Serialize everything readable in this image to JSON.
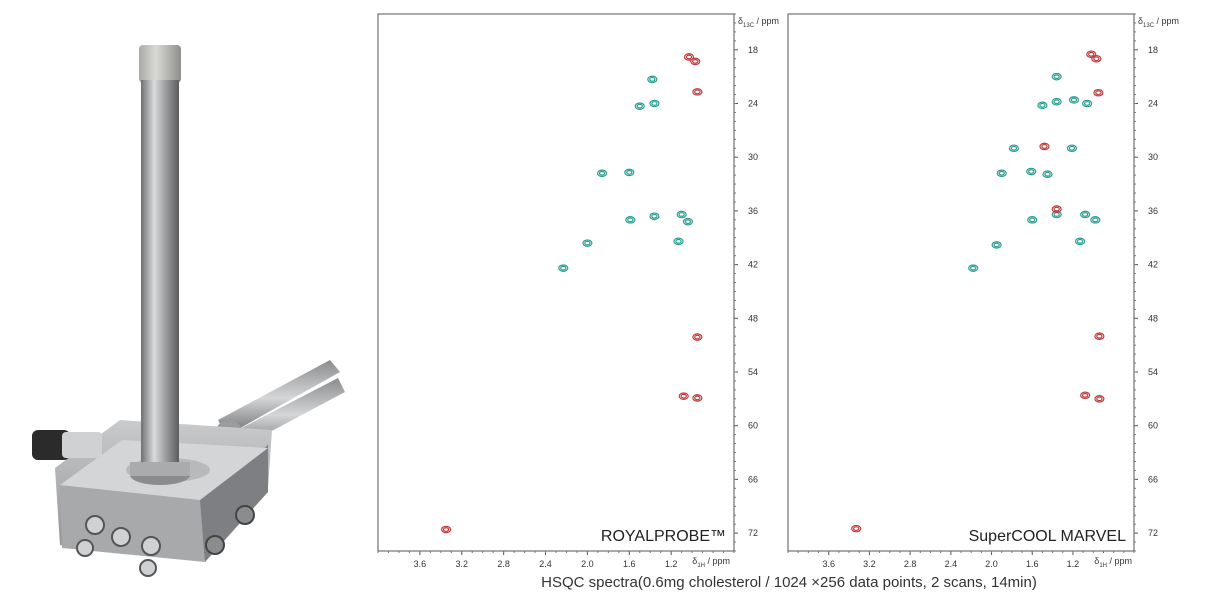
{
  "chart_data": [
    {
      "type": "scatter",
      "label": "ROYALPROBE™",
      "xlabel": "δ1H / ppm",
      "ylabel": "δ13C / ppm",
      "xlim": [
        4.0,
        0.6
      ],
      "ylim": [
        14,
        74
      ],
      "xticks": [
        "3.6",
        "3.2",
        "2.8",
        "2.4",
        "2.0",
        "1.6",
        "1.2"
      ],
      "yticks": [
        "18",
        "24",
        "30",
        "36",
        "42",
        "48",
        "54",
        "60",
        "66",
        "72"
      ],
      "series": [
        {
          "color": "#2a9e8f",
          "points": [
            {
              "x": 1.38,
              "y": 21.3
            },
            {
              "x": 1.5,
              "y": 24.3
            },
            {
              "x": 1.36,
              "y": 24.0
            },
            {
              "x": 1.86,
              "y": 31.8
            },
            {
              "x": 1.6,
              "y": 31.7
            },
            {
              "x": 1.59,
              "y": 37.0
            },
            {
              "x": 1.36,
              "y": 36.6
            },
            {
              "x": 1.04,
              "y": 37.2
            },
            {
              "x": 1.1,
              "y": 36.4
            },
            {
              "x": 2.0,
              "y": 39.6
            },
            {
              "x": 1.13,
              "y": 39.4
            },
            {
              "x": 2.23,
              "y": 42.4
            }
          ]
        },
        {
          "color": "#c0393b",
          "points": [
            {
              "x": 1.03,
              "y": 18.8
            },
            {
              "x": 0.97,
              "y": 19.3
            },
            {
              "x": 0.95,
              "y": 22.7
            },
            {
              "x": 0.95,
              "y": 50.1
            },
            {
              "x": 1.08,
              "y": 56.7
            },
            {
              "x": 0.95,
              "y": 56.9
            },
            {
              "x": 3.35,
              "y": 71.6
            }
          ]
        }
      ]
    },
    {
      "type": "scatter",
      "label": "SuperCOOL MARVEL",
      "xlabel": "δ1H / ppm",
      "ylabel": "δ13C / ppm",
      "xlim": [
        4.0,
        0.6
      ],
      "ylim": [
        14,
        74
      ],
      "xticks": [
        "3.6",
        "3.2",
        "2.8",
        "2.4",
        "2.0",
        "1.6",
        "1.2"
      ],
      "yticks": [
        "18",
        "24",
        "30",
        "36",
        "42",
        "48",
        "54",
        "60",
        "66",
        "72"
      ],
      "series": [
        {
          "color": "#2a9e8f",
          "points": [
            {
              "x": 1.36,
              "y": 21.0
            },
            {
              "x": 1.5,
              "y": 24.2
            },
            {
              "x": 1.36,
              "y": 23.8
            },
            {
              "x": 1.19,
              "y": 23.6
            },
            {
              "x": 1.06,
              "y": 24.0
            },
            {
              "x": 1.78,
              "y": 29.0
            },
            {
              "x": 1.21,
              "y": 29.0
            },
            {
              "x": 1.9,
              "y": 31.8
            },
            {
              "x": 1.61,
              "y": 31.6
            },
            {
              "x": 1.45,
              "y": 31.9
            },
            {
              "x": 1.6,
              "y": 37.0
            },
            {
              "x": 1.36,
              "y": 36.4
            },
            {
              "x": 1.08,
              "y": 36.4
            },
            {
              "x": 0.98,
              "y": 37.0
            },
            {
              "x": 1.95,
              "y": 39.8
            },
            {
              "x": 1.13,
              "y": 39.4
            },
            {
              "x": 2.18,
              "y": 42.4
            }
          ]
        },
        {
          "color": "#c0393b",
          "points": [
            {
              "x": 1.02,
              "y": 18.5
            },
            {
              "x": 0.97,
              "y": 19.0
            },
            {
              "x": 0.95,
              "y": 22.8
            },
            {
              "x": 1.48,
              "y": 28.8
            },
            {
              "x": 1.36,
              "y": 35.8
            },
            {
              "x": 0.94,
              "y": 50.0
            },
            {
              "x": 1.08,
              "y": 56.6
            },
            {
              "x": 0.94,
              "y": 57.0
            },
            {
              "x": 3.33,
              "y": 71.5
            }
          ]
        }
      ]
    }
  ],
  "caption": "HSQC spectra(0.6mg cholesterol / 1024 ×256 data points, 2 scans, 14min)"
}
